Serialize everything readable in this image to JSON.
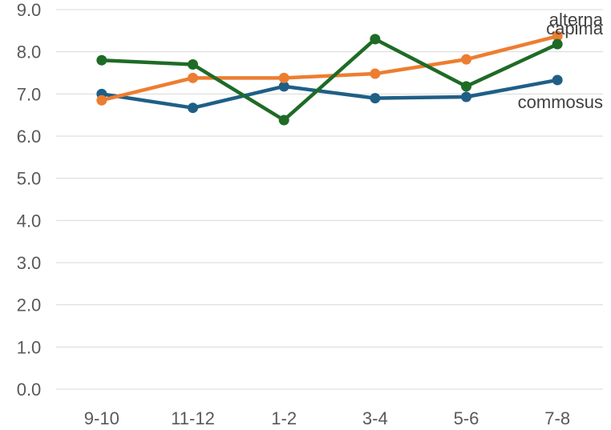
{
  "chart_data": {
    "type": "line",
    "title": "",
    "xlabel": "",
    "ylabel": "",
    "categories": [
      "9-10",
      "11-12",
      "1-2",
      "3-4",
      "5-6",
      "7-8"
    ],
    "ylim": [
      0,
      9
    ],
    "yticks": [
      "0.0",
      "1.0",
      "2.0",
      "3.0",
      "4.0",
      "5.0",
      "6.0",
      "7.0",
      "8.0",
      "9.0"
    ],
    "grid": true,
    "series": [
      {
        "name": "commosus",
        "color": "#1f5f86",
        "values": [
          7.0,
          6.67,
          7.18,
          6.9,
          6.93,
          7.33
        ]
      },
      {
        "name": "alterna",
        "color": "#ed7d31",
        "values": [
          6.85,
          7.38,
          7.38,
          7.48,
          7.82,
          8.37
        ]
      },
      {
        "name": "capima",
        "color": "#1e6b26",
        "values": [
          7.8,
          7.7,
          6.38,
          8.3,
          7.18,
          8.18
        ]
      }
    ]
  }
}
